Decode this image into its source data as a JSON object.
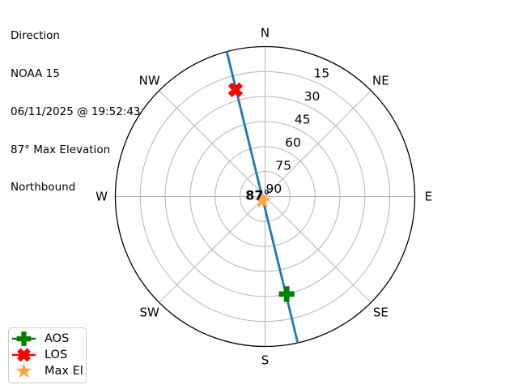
{
  "chart_data": {
    "type": "polar_skyplot",
    "info_lines": [
      "Direction",
      "NOAA 15",
      "06/11/2025 @ 19:52:43",
      "87° Max Elevation",
      "Northbound"
    ],
    "satellite": "NOAA 15",
    "pass_time": "06/11/2025 @ 19:52:43",
    "max_elevation_deg": 87,
    "pass_direction": "Northbound",
    "compass_labels": [
      "N",
      "NE",
      "E",
      "SE",
      "S",
      "SW",
      "W",
      "NW"
    ],
    "elevation_ticks_deg": [
      15,
      30,
      45,
      60,
      75,
      90
    ],
    "radial_label_azimuth_deg": 22.5,
    "center_annotation": "87°",
    "track": {
      "name": "satellite-ground-track",
      "color": "#1f77b4",
      "points_az_el": [
        [
          345.2,
          0
        ],
        [
          167.4,
          0
        ]
      ]
    },
    "markers": [
      {
        "id": "aos",
        "label": "AOS",
        "shape": "plus",
        "color": "#008000",
        "azimuth_deg": 167.5,
        "elevation_deg": 30
      },
      {
        "id": "los",
        "label": "LOS",
        "shape": "x",
        "color": "#ff0000",
        "azimuth_deg": 344.5,
        "elevation_deg": 23.5
      },
      {
        "id": "max-el",
        "label": "Max El",
        "shape": "star",
        "color": "#ffa33c",
        "azimuth_deg": 212,
        "elevation_deg": 87
      }
    ],
    "legend": {
      "items": [
        {
          "label": "AOS",
          "shape": "plus",
          "color": "#008000",
          "line": true
        },
        {
          "label": "LOS",
          "shape": "x",
          "color": "#ff0000",
          "line": true
        },
        {
          "label": "Max El",
          "shape": "star",
          "color": "#ffa33c",
          "line": false
        }
      ]
    },
    "grid_color": "#b4b4b4",
    "outline_color": "#000000",
    "text_color": "#000000"
  }
}
